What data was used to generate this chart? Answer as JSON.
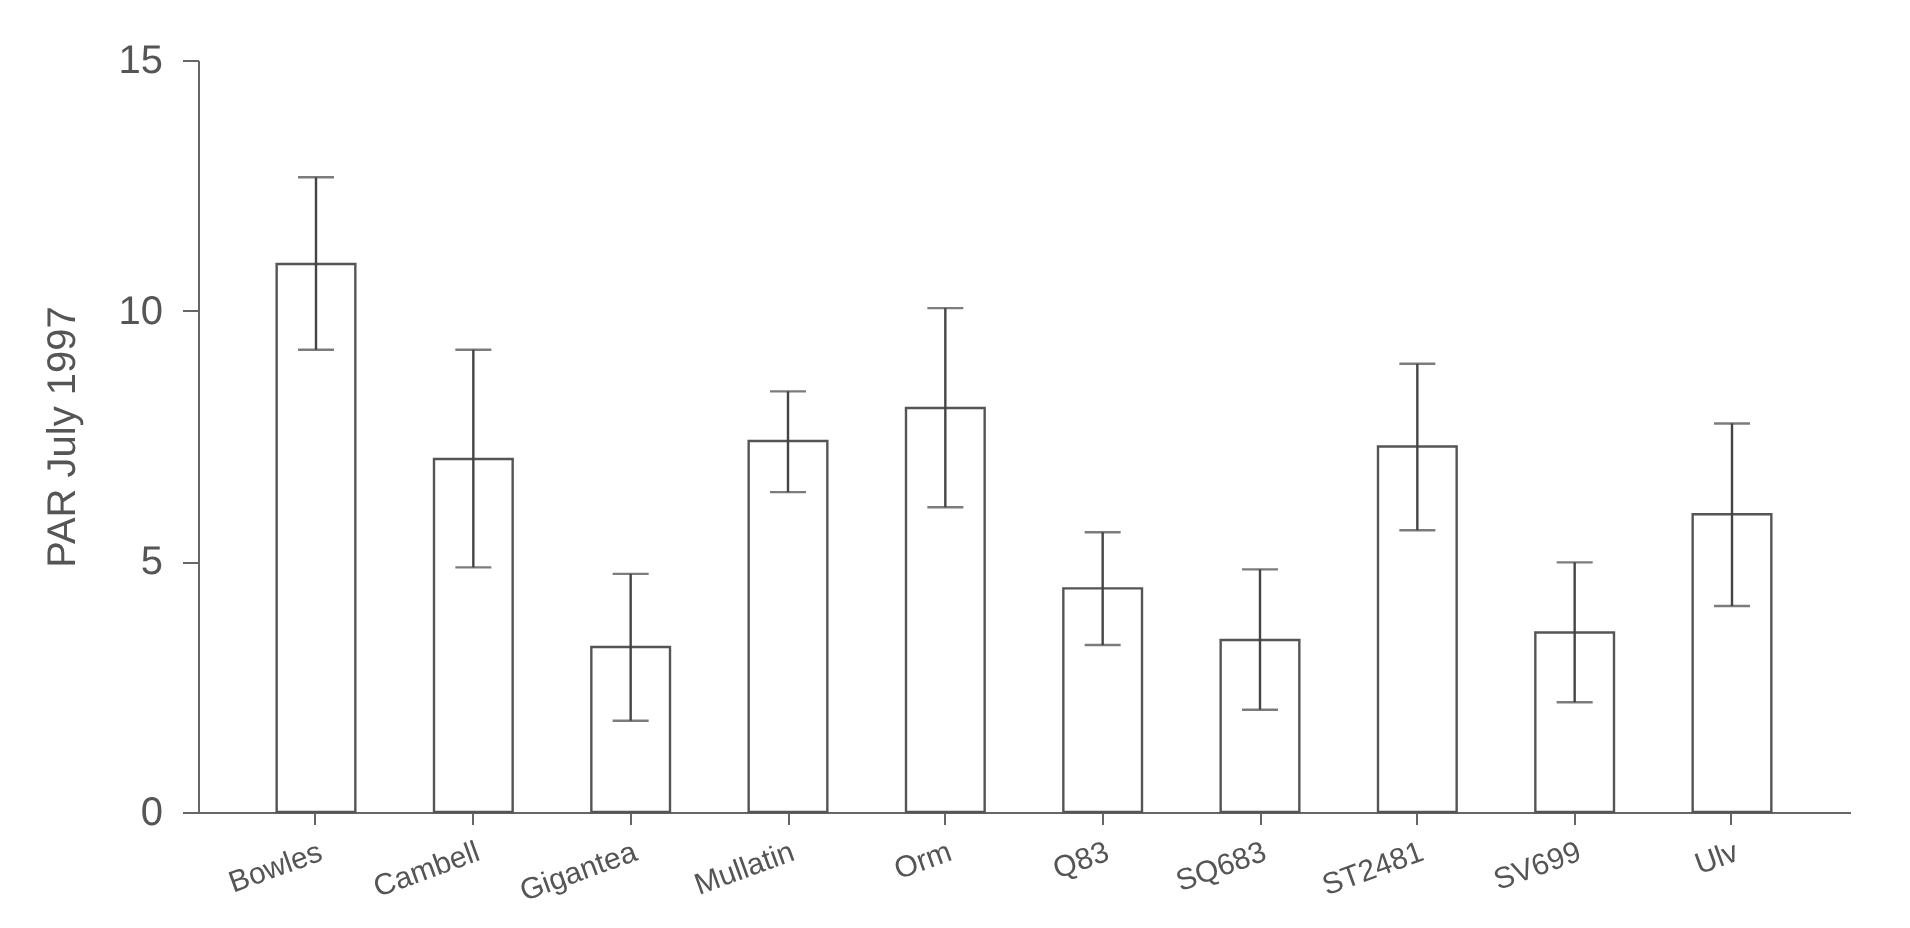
{
  "chart_data": {
    "type": "bar",
    "ylabel": "PAR July 1997",
    "categories": [
      "Bowles",
      "Cambell",
      "Gigantea",
      "Mullatin",
      "Orm",
      "Q83",
      "SQ683",
      "ST2481",
      "SV699",
      "Ulv"
    ],
    "values": [
      10.93,
      7.04,
      3.29,
      7.4,
      8.06,
      4.46,
      3.43,
      7.29,
      3.58,
      5.94
    ],
    "errors": [
      [
        9.22,
        12.66
      ],
      [
        4.88,
        9.22
      ],
      [
        1.82,
        4.75
      ],
      [
        6.38,
        8.39
      ],
      [
        6.08,
        10.05
      ],
      [
        3.33,
        5.58
      ],
      [
        2.04,
        4.84
      ],
      [
        5.62,
        8.94
      ],
      [
        2.19,
        4.98
      ],
      [
        4.11,
        7.75
      ]
    ],
    "color": "#ffffff",
    "ylim": [
      0,
      15
    ],
    "yticks": [
      0,
      5,
      10,
      15
    ],
    "grid": false
  }
}
